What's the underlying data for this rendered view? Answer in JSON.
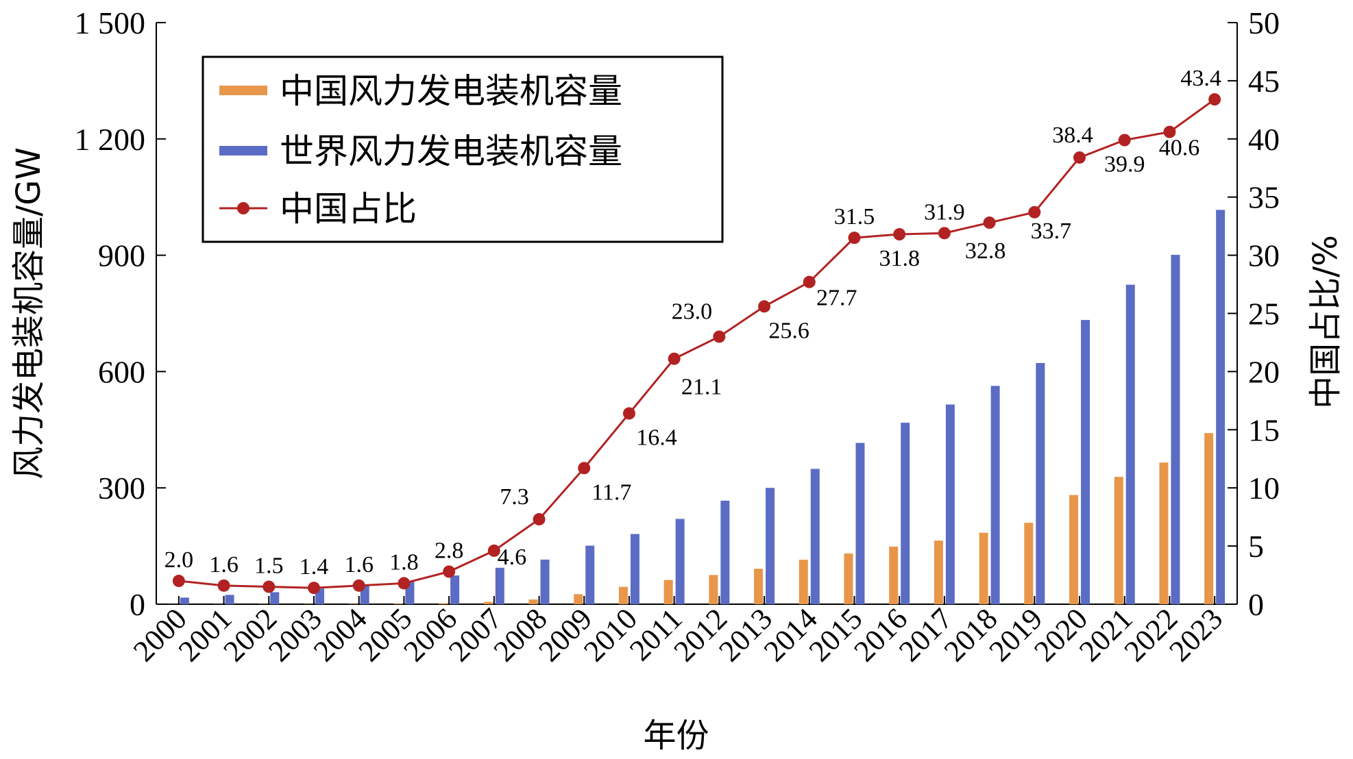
{
  "chart_data": {
    "type": "bar",
    "xlabel": "年份",
    "ylabel_left": "风力发电装机容量/GW",
    "ylabel_right": "中国占比/%",
    "categories": [
      "2000",
      "2001",
      "2002",
      "2003",
      "2004",
      "2005",
      "2006",
      "2007",
      "2008",
      "2009",
      "2010",
      "2011",
      "2012",
      "2013",
      "2014",
      "2015",
      "2016",
      "2017",
      "2018",
      "2019",
      "2020",
      "2021",
      "2022",
      "2023"
    ],
    "ylim_left": [
      0,
      1500
    ],
    "ylim_right": [
      0,
      50
    ],
    "yticks_left": [
      0,
      300,
      600,
      900,
      1200,
      1500
    ],
    "ytick_labels_left": [
      "0",
      "300",
      "600",
      "900",
      "1 200",
      "1 500"
    ],
    "yticks_right": [
      0,
      5,
      10,
      15,
      20,
      25,
      30,
      35,
      40,
      45,
      50
    ],
    "ytick_labels_right": [
      "0",
      "5",
      "10",
      "15",
      "20",
      "25",
      "30",
      "35",
      "40",
      "45",
      "50"
    ],
    "legend_position": "top-left",
    "grid": false,
    "series": [
      {
        "name": "中国风力发电装机容量",
        "kind": "bar",
        "axis": "left",
        "color": "#E8964A",
        "values": [
          0.3,
          0.4,
          0.5,
          0.6,
          0.8,
          1.3,
          2.6,
          5.9,
          12.0,
          25.8,
          44.7,
          62.4,
          75.3,
          91.4,
          114.6,
          130.8,
          148.6,
          164.0,
          184.3,
          209.9,
          281.5,
          328.5,
          365.4,
          441.3
        ]
      },
      {
        "name": "世界风力发电装机容量",
        "kind": "bar",
        "axis": "left",
        "color": "#5B6CC4",
        "values": [
          17,
          24,
          31,
          40,
          48,
          59,
          74,
          94,
          115,
          151,
          181,
          220,
          267,
          300,
          349,
          416,
          468,
          515,
          563,
          622,
          733,
          824,
          901,
          1017
        ]
      },
      {
        "name": "中国占比",
        "kind": "line",
        "axis": "right",
        "color": "#B22222",
        "values": [
          2.0,
          1.6,
          1.5,
          1.4,
          1.6,
          1.8,
          2.8,
          4.6,
          7.3,
          11.7,
          16.4,
          21.1,
          23.0,
          25.6,
          27.7,
          31.5,
          31.8,
          31.9,
          32.8,
          33.7,
          38.4,
          39.9,
          40.6,
          43.4
        ],
        "labels": [
          "2.0",
          "1.6",
          "1.5",
          "1.4",
          "1.6",
          "1.8",
          "2.8",
          "4.6",
          "7.3",
          "11.7",
          "16.4",
          "21.1",
          "23.0",
          "25.6",
          "27.7",
          "31.5",
          "31.8",
          "31.9",
          "32.8",
          "33.7",
          "38.4",
          "39.9",
          "40.6",
          "43.4"
        ]
      }
    ]
  }
}
